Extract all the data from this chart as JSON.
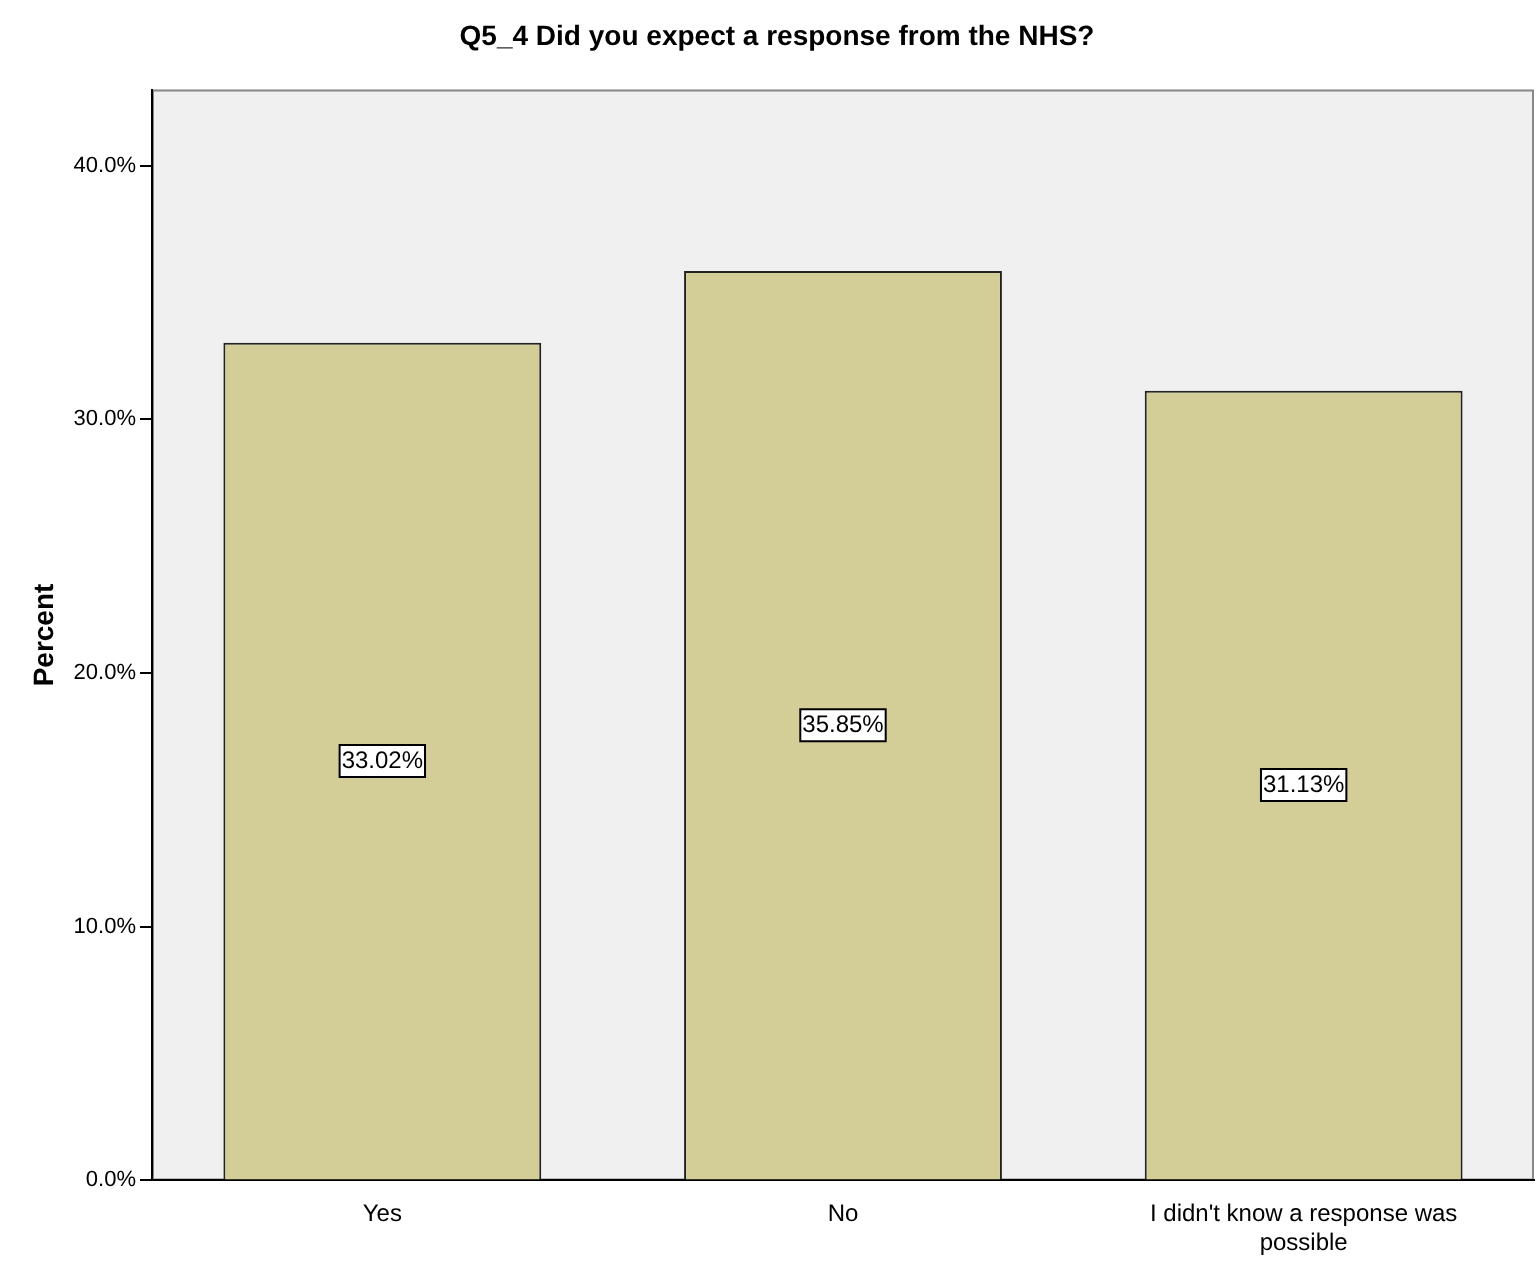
{
  "chart_data": {
    "type": "bar",
    "title": "Q5_4 Did you expect a response from the NHS?",
    "ylabel": "Percent",
    "categories": [
      "Yes",
      "No",
      "I didn't know a response was possible"
    ],
    "values": [
      33.02,
      35.85,
      31.13
    ],
    "value_labels": [
      "33.02%",
      "35.85%",
      "31.13%"
    ],
    "color": "#d3ce98",
    "ylim": [
      0,
      43
    ],
    "yticks": [
      {
        "value": 0,
        "label": "0.0%"
      },
      {
        "value": 10,
        "label": "10.0%"
      },
      {
        "value": 20,
        "label": "20.0%"
      },
      {
        "value": 30,
        "label": "30.0%"
      },
      {
        "value": 40,
        "label": "40.0%"
      }
    ]
  }
}
